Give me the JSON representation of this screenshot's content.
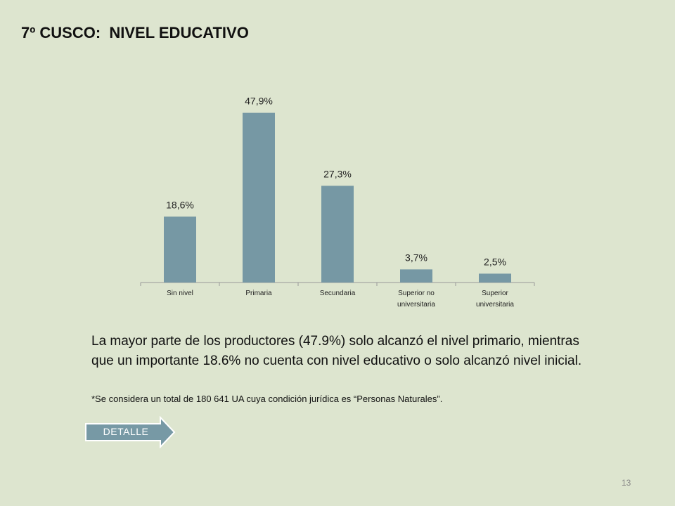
{
  "page": {
    "title": "7º CUSCO:  NIVEL EDUCATIVO",
    "body_text": "La mayor parte de los productores (47.9%) solo alcanzó el nivel primario, mientras que un importante 18.6% no cuenta con nivel educativo o solo alcanzó nivel inicial.",
    "note": "*Se considera un total de 180 641 UA cuya condición jurídica es “Personas Naturales”.",
    "button_label": "DETALLE",
    "page_number": "13"
  },
  "colors": {
    "background": "#dde5cf",
    "bar": "#7698a4",
    "button": "#7799a5"
  },
  "chart_data": {
    "type": "bar",
    "title": "",
    "xlabel": "",
    "ylabel": "",
    "categories": [
      [
        "Sin nivel"
      ],
      [
        "Primaria"
      ],
      [
        "Secundaria"
      ],
      [
        "Superior no",
        "universitaria"
      ],
      [
        "Superior",
        "universitaria"
      ]
    ],
    "values": [
      18.6,
      47.9,
      27.3,
      3.7,
      2.5
    ],
    "data_labels": [
      "18,6%",
      "47,9%",
      "27,3%",
      "3,7%",
      "2,5%"
    ],
    "ylim": [
      0,
      50
    ],
    "grid": false,
    "legend": "none"
  }
}
